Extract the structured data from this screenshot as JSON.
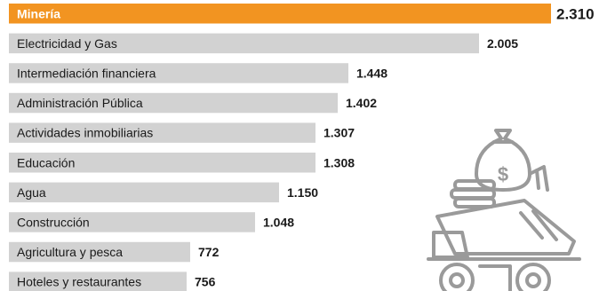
{
  "chart_data": {
    "type": "bar",
    "orientation": "horizontal",
    "categories": [
      "Minería",
      "Electricidad y Gas",
      "Intermediación financiera",
      "Administración Pública",
      "Actividades inmobiliarias",
      "Educación",
      "Agua",
      "Construcción",
      "Agricultura y pesca",
      "Hoteles y restaurantes"
    ],
    "values": [
      2310,
      2005,
      1448,
      1402,
      1307,
      1308,
      1150,
      1048,
      772,
      756
    ],
    "value_labels": [
      "2.310",
      "2.005",
      "1.448",
      "1.402",
      "1.307",
      "1.308",
      "1.150",
      "1.048",
      "772",
      "756"
    ],
    "highlight_index": 0,
    "title": "",
    "xlabel": "",
    "ylabel": "",
    "xlim": [
      0,
      2310
    ],
    "grid": false,
    "legend": "none"
  },
  "colors": {
    "highlight_bar": "#f29421",
    "bar": "#d2d2d2",
    "text": "#1a1a1a",
    "highlight_text": "#ffffff",
    "icon": "#9a9a9a"
  },
  "decoration": {
    "icon": "mining-dump-truck-money-bag-icon"
  }
}
